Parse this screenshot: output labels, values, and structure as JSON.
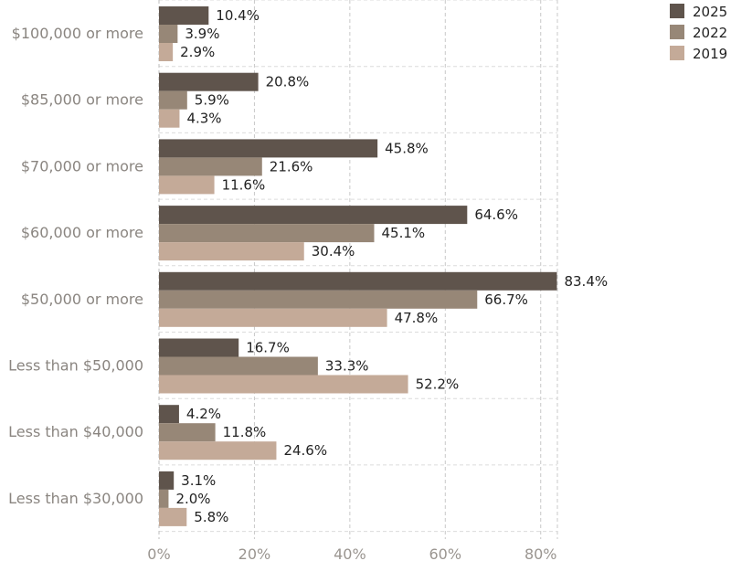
{
  "chart_data": {
    "type": "bar",
    "orientation": "horizontal",
    "categories": [
      "$100,000 or more",
      "$85,000 or more",
      "$70,000 or more",
      "$60,000 or more",
      "$50,000 or more",
      "Less than $50,000",
      "Less than $40,000",
      "Less than $30,000"
    ],
    "series": [
      {
        "name": "2025",
        "color": "#5f544c",
        "values": [
          10.4,
          20.8,
          45.8,
          64.6,
          83.4,
          16.7,
          4.2,
          3.1
        ],
        "labels": [
          "10.4%",
          "20.8%",
          "45.8%",
          "64.6%",
          "83.4%",
          "16.7%",
          "4.2%",
          "3.1%"
        ]
      },
      {
        "name": "2022",
        "color": "#978777",
        "values": [
          3.9,
          5.9,
          21.6,
          45.1,
          66.7,
          33.3,
          11.8,
          2.0
        ],
        "labels": [
          "3.9%",
          "5.9%",
          "21.6%",
          "45.1%",
          "66.7%",
          "33.3%",
          "11.8%",
          "2.0%"
        ]
      },
      {
        "name": "2019",
        "color": "#c4aa98",
        "values": [
          2.9,
          4.3,
          11.6,
          30.4,
          47.8,
          52.2,
          24.6,
          5.8
        ],
        "labels": [
          "2.9%",
          "4.3%",
          "11.6%",
          "30.4%",
          "47.8%",
          "52.2%",
          "24.6%",
          "5.8%"
        ]
      }
    ],
    "x_ticks": [
      "0%",
      "20%",
      "40%",
      "60%",
      "80%"
    ],
    "xlim": [
      0,
      83.5
    ],
    "grid": true,
    "legend_position": "top-right",
    "title": "",
    "xlabel": "",
    "ylabel": ""
  }
}
